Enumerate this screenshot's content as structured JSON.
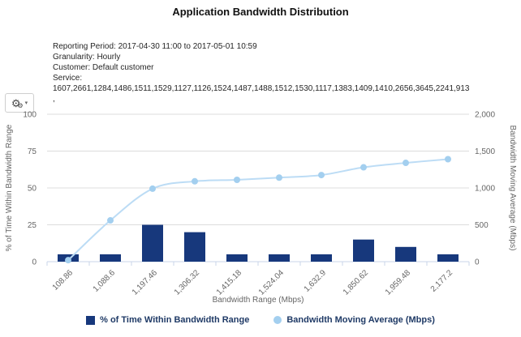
{
  "title": "Application Bandwidth Distribution",
  "meta": {
    "reporting_period": "Reporting Period: 2017-04-30 11:00 to 2017-05-01 10:59",
    "granularity": "Granularity: Hourly",
    "customer": "Customer: Default customer",
    "service_label": "Service:",
    "service_values": "1607,2661,1284,1486,1511,1529,1127,1126,1524,1487,1488,1512,1530,1117,1383,1409,1410,2656,3645,2241,913",
    "service_trailing": ","
  },
  "toolbar": {
    "menu_icon": "⚙",
    "menu_icon_small": "⚙",
    "caret_icon": "▾"
  },
  "chart_data": {
    "type": "bar",
    "subtype": "pareto-combo (bars + smoothed line, dual y-axes)",
    "categories": [
      "108.86",
      "1,088.6",
      "1,197.46",
      "1,306.32",
      "1,415.18",
      "1,524.04",
      "1,632.9",
      "1,850.62",
      "1,959.48",
      "2,177.2"
    ],
    "series": [
      {
        "name": "% of Time Within Bandwidth Range",
        "type": "bar",
        "axis": "left",
        "color": "#17387c",
        "values": [
          5,
          5,
          25,
          20,
          5,
          5,
          5,
          15,
          10,
          5
        ]
      },
      {
        "name": "Bandwidth Moving Average (Mbps)",
        "type": "line",
        "axis": "right",
        "color": "#bcdcf5",
        "marker_color": "#a3cfef",
        "values": [
          20,
          560,
          990,
          1090,
          1110,
          1140,
          1175,
          1280,
          1340,
          1390
        ]
      }
    ],
    "title": "Application Bandwidth Distribution",
    "xlabel": "Bandwidth Range (Mbps)",
    "ylabel_left": "% of Time Within Bandwidth Range",
    "ylabel_right": "Bandwidth Moving Average (Mbps)",
    "ylim_left": [
      0,
      100
    ],
    "ylim_right": [
      0,
      2000
    ],
    "yticks_left": [
      0,
      25,
      50,
      75,
      100
    ],
    "yticks_right_labels": [
      "0",
      "500",
      "1,000",
      "1,500",
      "2,000"
    ],
    "yticks_right_values": [
      0,
      500,
      1000,
      1500,
      2000
    ],
    "grid": "horizontal",
    "legend_position": "bottom",
    "colors": {
      "gridline": "#dcdcdc",
      "axis_line": "#c9d4ea",
      "tick_label": "#666666",
      "axis_title": "#666666"
    }
  },
  "legend": {
    "items": [
      {
        "label": "% of Time Within Bandwidth Range",
        "marker": "square",
        "color": "#17387c"
      },
      {
        "label": "Bandwidth Moving Average (Mbps)",
        "marker": "circle",
        "color": "#a3cfef"
      }
    ]
  }
}
